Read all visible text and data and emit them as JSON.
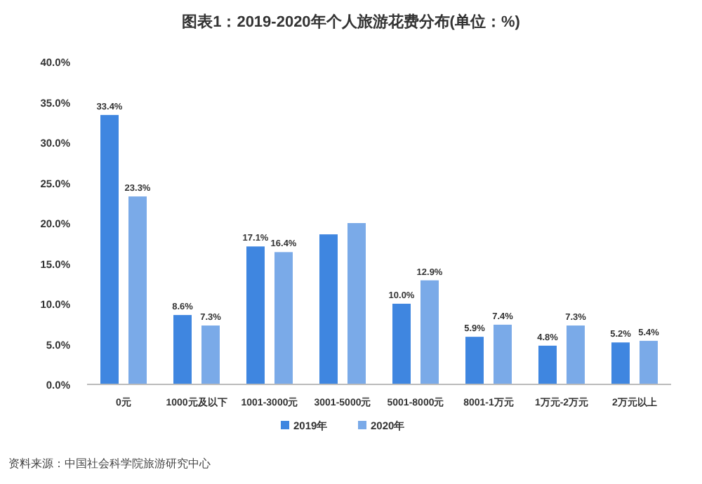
{
  "chart_data": {
    "type": "bar",
    "title": "图表1：2019-2020年个人旅游花费分布(单位：%)",
    "categories": [
      "0元",
      "1000元及以下",
      "1001-3000元",
      "3001-5000元",
      "5001-8000元",
      "8001-1万元",
      "1万元-2万元",
      "2万元以上"
    ],
    "series": [
      {
        "name": "2019年",
        "color": "#3f86e0",
        "values": [
          33.4,
          8.6,
          17.1,
          18.6,
          10.0,
          5.9,
          4.8,
          5.2
        ],
        "value_labels": [
          "33.4%",
          "8.6%",
          "17.1%",
          null,
          "10.0%",
          "5.9%",
          "4.8%",
          "5.2%"
        ]
      },
      {
        "name": "2020年",
        "color": "#7aaae8",
        "values": [
          23.3,
          7.3,
          16.4,
          20.0,
          12.9,
          7.4,
          7.3,
          5.4
        ],
        "value_labels": [
          "23.3%",
          "7.3%",
          "16.4%",
          null,
          "12.9%",
          "7.4%",
          "7.3%",
          "5.4%"
        ]
      }
    ],
    "ylim": [
      0,
      40
    ],
    "yticks": [
      {
        "value": 0,
        "label": "0.0%"
      },
      {
        "value": 5,
        "label": "5.0%"
      },
      {
        "value": 10,
        "label": "10.0%"
      },
      {
        "value": 15,
        "label": "15.0%"
      },
      {
        "value": 20,
        "label": "20.0%"
      },
      {
        "value": 25,
        "label": "25.0%"
      },
      {
        "value": 30,
        "label": "30.0%"
      },
      {
        "value": 35,
        "label": "35.0%"
      },
      {
        "value": 40,
        "label": "40.0%"
      }
    ],
    "legend": "bottom",
    "annotations": [
      "资料来源：中国社会科学院旅游研究中心"
    ]
  }
}
